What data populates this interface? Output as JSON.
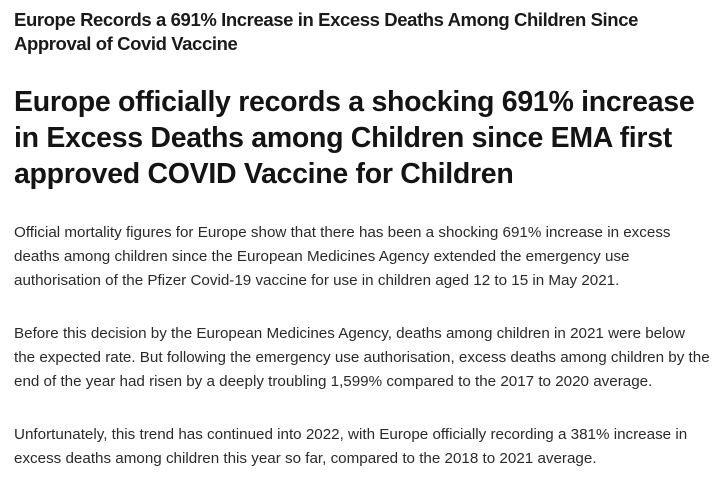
{
  "article": {
    "title": "Europe Records a 691% Increase in Excess Deaths Among Children Since Approval of Covid Vaccine",
    "headline": "Europe officially records a shocking 691% increase in Excess Deaths among Children since EMA first approved COVID Vaccine for Children",
    "paragraphs": [
      "Official mortality figures for Europe show that there has been a shocking 691% increase in excess deaths among children since the European Medicines Agency extended the emergency use authorisation of the Pfizer Covid-19 vaccine for use in children aged 12 to 15 in May 2021.",
      "Before this decision by the European Medicines Agency, deaths among children in 2021 were below the expected rate. But following the emergency use authorisation, excess deaths among children by the end of the year had risen by a deeply troubling 1,599% compared to the 2017 to 2020 average.",
      "Unfortunately, this trend has continued into 2022, with Europe officially recording a 381% increase in excess deaths among children this year so far, compared to the 2018 to 2021 average."
    ]
  }
}
